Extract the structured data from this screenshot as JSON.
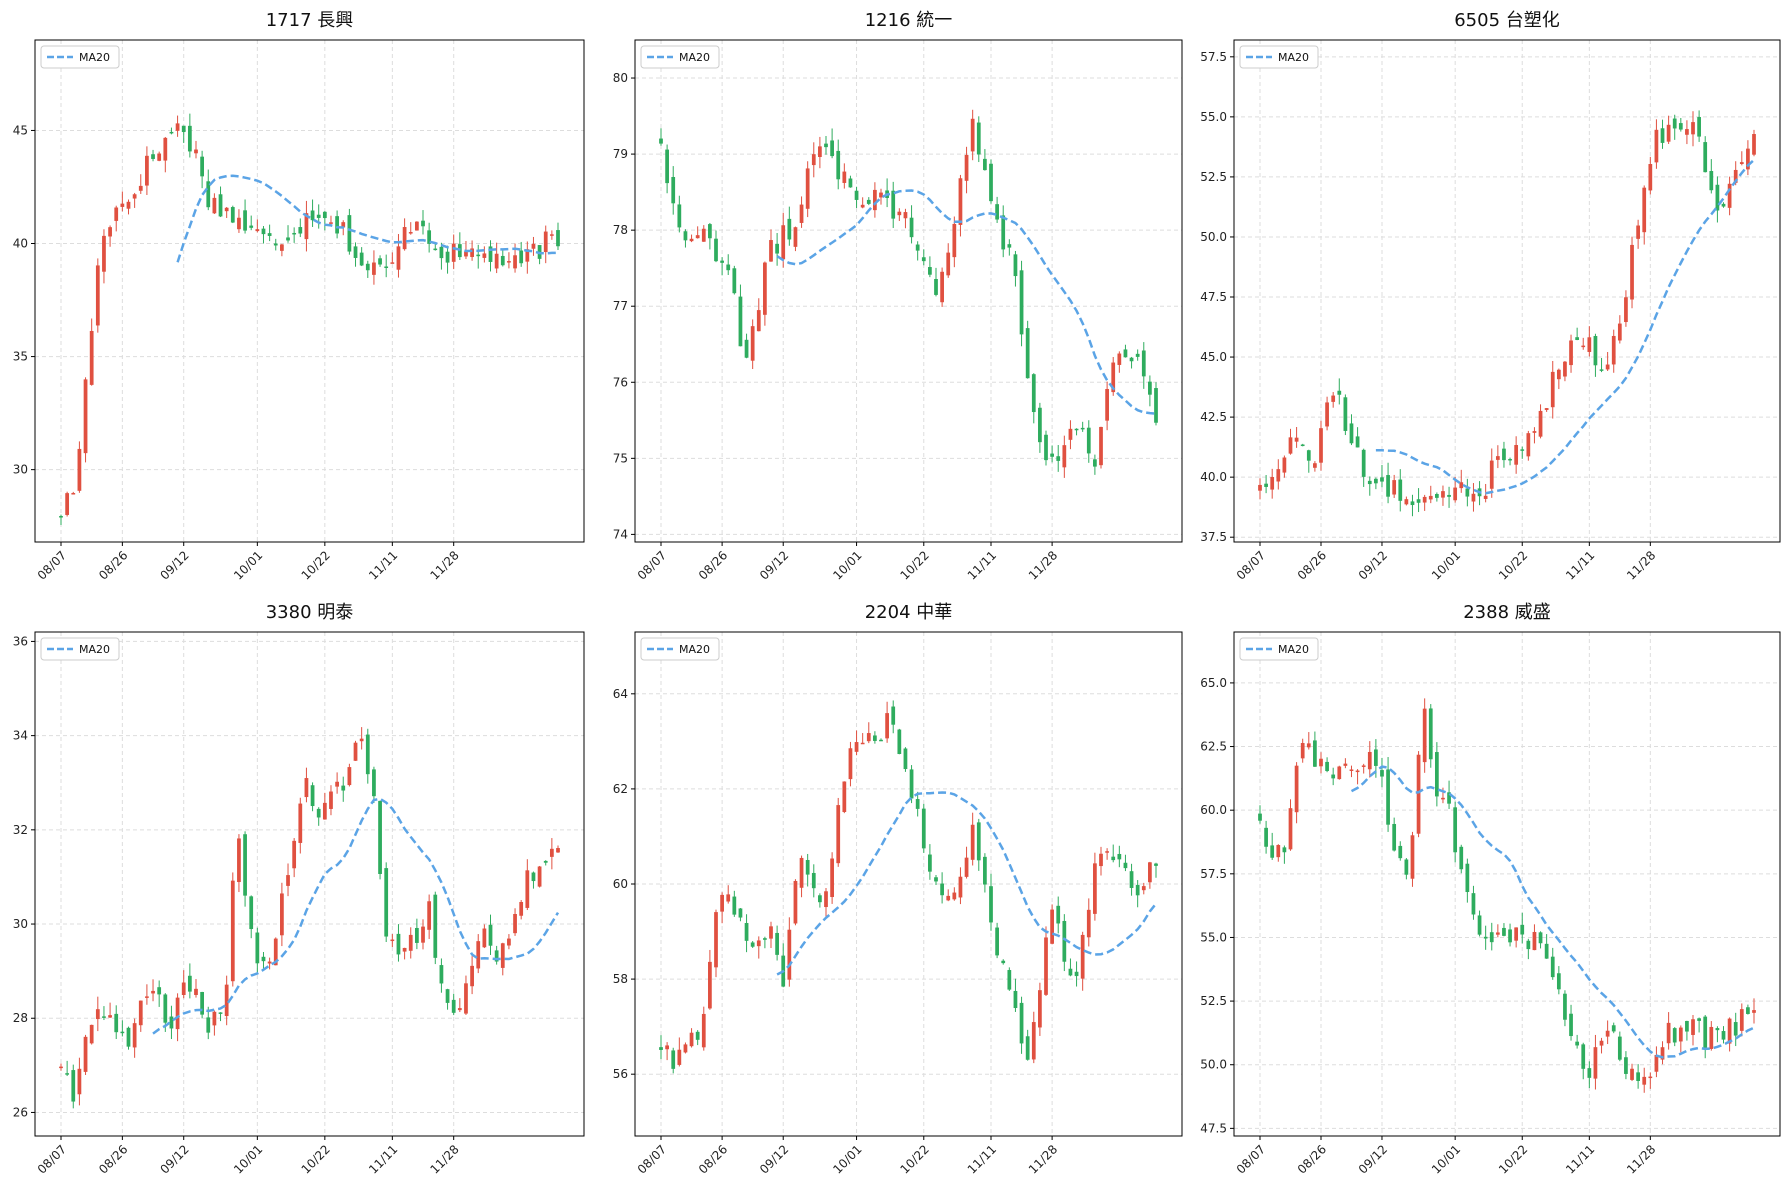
{
  "figure": {
    "xtick_labels": [
      "08/07",
      "08/26",
      "09/12",
      "10/01",
      "10/22",
      "11/11",
      "11/28"
    ],
    "legend_label": "MA20",
    "colors": {
      "up": "#e05040",
      "down": "#2eac5e",
      "ma": "#5ba4e6",
      "grid": "#dddddd"
    }
  },
  "chart_data": [
    {
      "type": "candlestick",
      "title": "1717 長興",
      "legend": "top-left",
      "grid": true,
      "ylim": [
        26.8,
        49.0
      ],
      "yticks": [
        30,
        35,
        40,
        45
      ],
      "ytick_labels": [
        "30",
        "35",
        "40",
        "45"
      ],
      "series": [
        {
          "name": "MA20",
          "ma_start_index": 19,
          "points": [
            [
              0,
              28.2
            ],
            [
              2,
              29.1
            ],
            [
              4,
              34.9
            ],
            [
              6,
              40.5
            ],
            [
              8,
              41.5
            ],
            [
              10,
              42.0
            ],
            [
              12,
              43.2
            ],
            [
              14,
              44.0
            ],
            [
              16,
              44.9
            ],
            [
              18,
              45.2
            ],
            [
              20,
              43.7
            ],
            [
              22,
              41.8
            ],
            [
              25,
              41.3
            ],
            [
              28,
              40.5
            ],
            [
              31,
              40.0
            ],
            [
              35,
              40.9
            ],
            [
              38,
              41.6
            ],
            [
              42,
              40.4
            ],
            [
              44,
              39.0
            ],
            [
              48,
              38.7
            ],
            [
              52,
              41.4
            ],
            [
              55,
              39.9
            ],
            [
              58,
              39.4
            ],
            [
              61,
              39.6
            ],
            [
              64,
              39.4
            ],
            [
              67,
              38.9
            ],
            [
              70,
              39.8
            ],
            [
              72,
              40.1
            ],
            [
              73,
              39.5
            ]
          ]
        }
      ]
    },
    {
      "type": "candlestick",
      "title": "1216 統一",
      "legend": "top-left",
      "grid": true,
      "ylim": [
        73.9,
        80.5
      ],
      "yticks": [
        74,
        75,
        76,
        77,
        78,
        79,
        80
      ],
      "ytick_labels": [
        "74",
        "75",
        "76",
        "77",
        "78",
        "79",
        "80"
      ],
      "series": [
        {
          "name": "MA20",
          "ma_start_index": 19,
          "points": [
            [
              0,
              79.2
            ],
            [
              2,
              78.2
            ],
            [
              4,
              77.8
            ],
            [
              6,
              78.2
            ],
            [
              8,
              77.6
            ],
            [
              10,
              77.5
            ],
            [
              12,
              76.3
            ],
            [
              14,
              76.9
            ],
            [
              16,
              77.7
            ],
            [
              18,
              77.9
            ],
            [
              20,
              78.1
            ],
            [
              22,
              78.9
            ],
            [
              24,
              79.3
            ],
            [
              26,
              78.8
            ],
            [
              28,
              78.7
            ],
            [
              30,
              78.2
            ],
            [
              32,
              78.6
            ],
            [
              34,
              78.3
            ],
            [
              36,
              78.3
            ],
            [
              38,
              77.7
            ],
            [
              40,
              77.2
            ],
            [
              42,
              77.5
            ],
            [
              44,
              78.6
            ],
            [
              46,
              79.4
            ],
            [
              48,
              78.7
            ],
            [
              50,
              78.0
            ],
            [
              52,
              77.6
            ],
            [
              54,
              76.0
            ],
            [
              56,
              75.1
            ],
            [
              58,
              75.0
            ],
            [
              60,
              75.3
            ],
            [
              62,
              75.4
            ],
            [
              64,
              74.9
            ],
            [
              66,
              76.1
            ],
            [
              68,
              76.5
            ],
            [
              70,
              76.3
            ],
            [
              73,
              75.5
            ]
          ]
        }
      ]
    },
    {
      "type": "candlestick",
      "title": "6505 台塑化",
      "legend": "top-left",
      "grid": true,
      "ylim": [
        37.3,
        58.2
      ],
      "yticks": [
        37.5,
        40.0,
        42.5,
        45.0,
        47.5,
        50.0,
        52.5,
        55.0,
        57.5
      ],
      "ytick_labels": [
        "37.5",
        "40.0",
        "42.5",
        "45.0",
        "47.5",
        "50.0",
        "52.5",
        "55.0",
        "57.5"
      ],
      "series": [
        {
          "name": "MA20",
          "ma_start_index": 19,
          "points": [
            [
              0,
              39.8
            ],
            [
              2,
              39.6
            ],
            [
              4,
              41.5
            ],
            [
              6,
              41.8
            ],
            [
              8,
              40.5
            ],
            [
              10,
              43.3
            ],
            [
              12,
              42.9
            ],
            [
              14,
              41.0
            ],
            [
              16,
              39.8
            ],
            [
              18,
              39.6
            ],
            [
              20,
              39.4
            ],
            [
              22,
              39.2
            ],
            [
              24,
              39.1
            ],
            [
              26,
              39.0
            ],
            [
              28,
              39.2
            ],
            [
              30,
              39.6
            ],
            [
              32,
              38.8
            ],
            [
              34,
              40.2
            ],
            [
              36,
              41.2
            ],
            [
              38,
              41.0
            ],
            [
              40,
              42.1
            ],
            [
              42,
              43.2
            ],
            [
              44,
              44.3
            ],
            [
              46,
              45.5
            ],
            [
              48,
              45.7
            ],
            [
              50,
              44.6
            ],
            [
              52,
              45.2
            ],
            [
              54,
              47.5
            ],
            [
              56,
              51.0
            ],
            [
              58,
              54.0
            ],
            [
              60,
              54.5
            ],
            [
              62,
              54.2
            ],
            [
              64,
              55.0
            ],
            [
              66,
              53.0
            ],
            [
              68,
              51.0
            ],
            [
              70,
              52.5
            ],
            [
              73,
              53.8
            ]
          ]
        }
      ]
    },
    {
      "type": "candlestick",
      "title": "3380 明泰",
      "legend": "top-left",
      "grid": true,
      "ylim": [
        25.5,
        36.2
      ],
      "yticks": [
        26,
        28,
        30,
        32,
        34,
        36
      ],
      "ytick_labels": [
        "26",
        "28",
        "30",
        "32",
        "34",
        "36"
      ],
      "series": [
        {
          "name": "MA20",
          "ma_start_index": 15,
          "points": [
            [
              0,
              27.0
            ],
            [
              2,
              26.4
            ],
            [
              4,
              27.6
            ],
            [
              6,
              28.2
            ],
            [
              8,
              27.8
            ],
            [
              10,
              27.4
            ],
            [
              12,
              28.6
            ],
            [
              14,
              28.6
            ],
            [
              16,
              27.4
            ],
            [
              18,
              28.8
            ],
            [
              20,
              28.6
            ],
            [
              22,
              27.8
            ],
            [
              24,
              28.3
            ],
            [
              26,
              32.2
            ],
            [
              28,
              29.6
            ],
            [
              30,
              29.0
            ],
            [
              32,
              30.2
            ],
            [
              34,
              31.5
            ],
            [
              36,
              33.0
            ],
            [
              38,
              32.4
            ],
            [
              40,
              32.6
            ],
            [
              42,
              33.2
            ],
            [
              44,
              34.0
            ],
            [
              46,
              32.6
            ],
            [
              48,
              29.6
            ],
            [
              50,
              29.5
            ],
            [
              52,
              29.7
            ],
            [
              54,
              30.3
            ],
            [
              56,
              28.5
            ],
            [
              58,
              28.0
            ],
            [
              60,
              28.8
            ],
            [
              62,
              29.8
            ],
            [
              64,
              29.4
            ],
            [
              66,
              29.6
            ],
            [
              68,
              31.0
            ],
            [
              70,
              31.2
            ],
            [
              73,
              31.6
            ]
          ]
        }
      ]
    },
    {
      "type": "candlestick",
      "title": "2204 中華",
      "legend": "top-left",
      "grid": true,
      "ylim": [
        54.7,
        65.3
      ],
      "yticks": [
        56,
        58,
        60,
        62,
        64
      ],
      "ytick_labels": [
        "56",
        "58",
        "60",
        "62",
        "64"
      ],
      "series": [
        {
          "name": "MA20",
          "ma_start_index": 19,
          "points": [
            [
              0,
              56.5
            ],
            [
              2,
              56.2
            ],
            [
              4,
              56.6
            ],
            [
              6,
              57.0
            ],
            [
              8,
              59.5
            ],
            [
              10,
              59.8
            ],
            [
              12,
              59.0
            ],
            [
              14,
              58.6
            ],
            [
              16,
              59.3
            ],
            [
              18,
              58.0
            ],
            [
              20,
              60.5
            ],
            [
              22,
              60.0
            ],
            [
              24,
              59.5
            ],
            [
              26,
              61.5
            ],
            [
              28,
              63.0
            ],
            [
              30,
              62.8
            ],
            [
              32,
              63.2
            ],
            [
              34,
              63.5
            ],
            [
              36,
              62.5
            ],
            [
              38,
              61.5
            ],
            [
              40,
              60.0
            ],
            [
              42,
              59.4
            ],
            [
              44,
              60.0
            ],
            [
              46,
              61.2
            ],
            [
              48,
              59.6
            ],
            [
              50,
              58.5
            ],
            [
              52,
              57.6
            ],
            [
              54,
              56.2
            ],
            [
              56,
              58.0
            ],
            [
              58,
              60.0
            ],
            [
              60,
              57.8
            ],
            [
              62,
              58.6
            ],
            [
              64,
              60.2
            ],
            [
              66,
              60.8
            ],
            [
              68,
              60.2
            ],
            [
              70,
              59.8
            ],
            [
              73,
              60.6
            ]
          ]
        }
      ]
    },
    {
      "type": "candlestick",
      "title": "2388 威盛",
      "legend": "top-left",
      "grid": true,
      "ylim": [
        47.2,
        67.0
      ],
      "yticks": [
        47.5,
        50.0,
        52.5,
        55.0,
        57.5,
        60.0,
        62.5,
        65.0
      ],
      "ytick_labels": [
        "47.5",
        "50.0",
        "52.5",
        "55.0",
        "57.5",
        "60.0",
        "62.5",
        "65.0"
      ],
      "series": [
        {
          "name": "MA20",
          "ma_start_index": 15,
          "points": [
            [
              0,
              59.5
            ],
            [
              2,
              58.0
            ],
            [
              4,
              58.5
            ],
            [
              6,
              63.0
            ],
            [
              8,
              62.0
            ],
            [
              10,
              61.5
            ],
            [
              12,
              62.0
            ],
            [
              14,
              61.5
            ],
            [
              16,
              62.0
            ],
            [
              18,
              61.0
            ],
            [
              20,
              58.0
            ],
            [
              22,
              57.5
            ],
            [
              24,
              64.0
            ],
            [
              26,
              61.0
            ],
            [
              28,
              60.0
            ],
            [
              30,
              57.0
            ],
            [
              32,
              55.5
            ],
            [
              34,
              55.0
            ],
            [
              36,
              55.5
            ],
            [
              38,
              55.0
            ],
            [
              40,
              55.0
            ],
            [
              42,
              54.5
            ],
            [
              44,
              53.0
            ],
            [
              46,
              51.0
            ],
            [
              48,
              49.5
            ],
            [
              50,
              50.5
            ],
            [
              52,
              51.2
            ],
            [
              54,
              50.0
            ],
            [
              56,
              49.0
            ],
            [
              58,
              49.5
            ],
            [
              60,
              51.5
            ],
            [
              62,
              51.0
            ],
            [
              64,
              51.5
            ],
            [
              66,
              51.0
            ],
            [
              68,
              51.2
            ],
            [
              70,
              51.5
            ],
            [
              73,
              52.0
            ]
          ]
        }
      ]
    }
  ]
}
